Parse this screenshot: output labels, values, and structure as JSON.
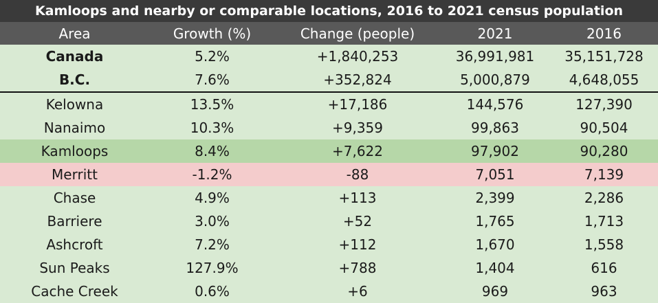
{
  "title": "Kamloops and nearby or comparable locations, 2016 to 2021 census population",
  "columns": [
    "Area",
    "Growth (%)",
    "Change (people)",
    "2021",
    "2016"
  ],
  "top_rows": [
    {
      "area": "Canada",
      "growth": "5.2%",
      "change": "+1,840,253",
      "y2021": "36,991,981",
      "y2016": "35,151,728"
    },
    {
      "area": "B.C.",
      "growth": "7.6%",
      "change": "+352,824",
      "y2021": "5,000,879",
      "y2016": "4,648,055"
    }
  ],
  "rows": [
    {
      "area": "Kelowna",
      "growth": "13.5%",
      "change": "+17,186",
      "y2021": "144,576",
      "y2016": "127,390",
      "style": "normal"
    },
    {
      "area": "Nanaimo",
      "growth": "10.3%",
      "change": "+9,359",
      "y2021": "99,863",
      "y2016": "90,504",
      "style": "normal"
    },
    {
      "area": "Kamloops",
      "growth": "8.4%",
      "change": "+7,622",
      "y2021": "97,902",
      "y2016": "90,280",
      "style": "highlight"
    },
    {
      "area": "Merritt",
      "growth": "-1.2%",
      "change": "-88",
      "y2021": "7,051",
      "y2016": "7,139",
      "style": "negative"
    },
    {
      "area": "Chase",
      "growth": "4.9%",
      "change": "+113",
      "y2021": "2,399",
      "y2016": "2,286",
      "style": "normal"
    },
    {
      "area": "Barriere",
      "growth": "3.0%",
      "change": "+52",
      "y2021": "1,765",
      "y2016": "1,713",
      "style": "normal"
    },
    {
      "area": "Ashcroft",
      "growth": "7.2%",
      "change": "+112",
      "y2021": "1,670",
      "y2016": "1,558",
      "style": "normal"
    },
    {
      "area": "Sun Peaks",
      "growth": "127.9%",
      "change": "+788",
      "y2021": "1,404",
      "y2016": "616",
      "style": "normal"
    },
    {
      "area": "Cache Creek",
      "growth": "0.6%",
      "change": "+6",
      "y2021": "969",
      "y2016": "963",
      "style": "normal"
    }
  ],
  "colors": {
    "title_bg": "#3a3a3a",
    "header_bg": "#595959",
    "row_bg": "#d9ead3",
    "highlight_bg": "#b6d7a8",
    "negative_bg": "#f4cccc"
  }
}
